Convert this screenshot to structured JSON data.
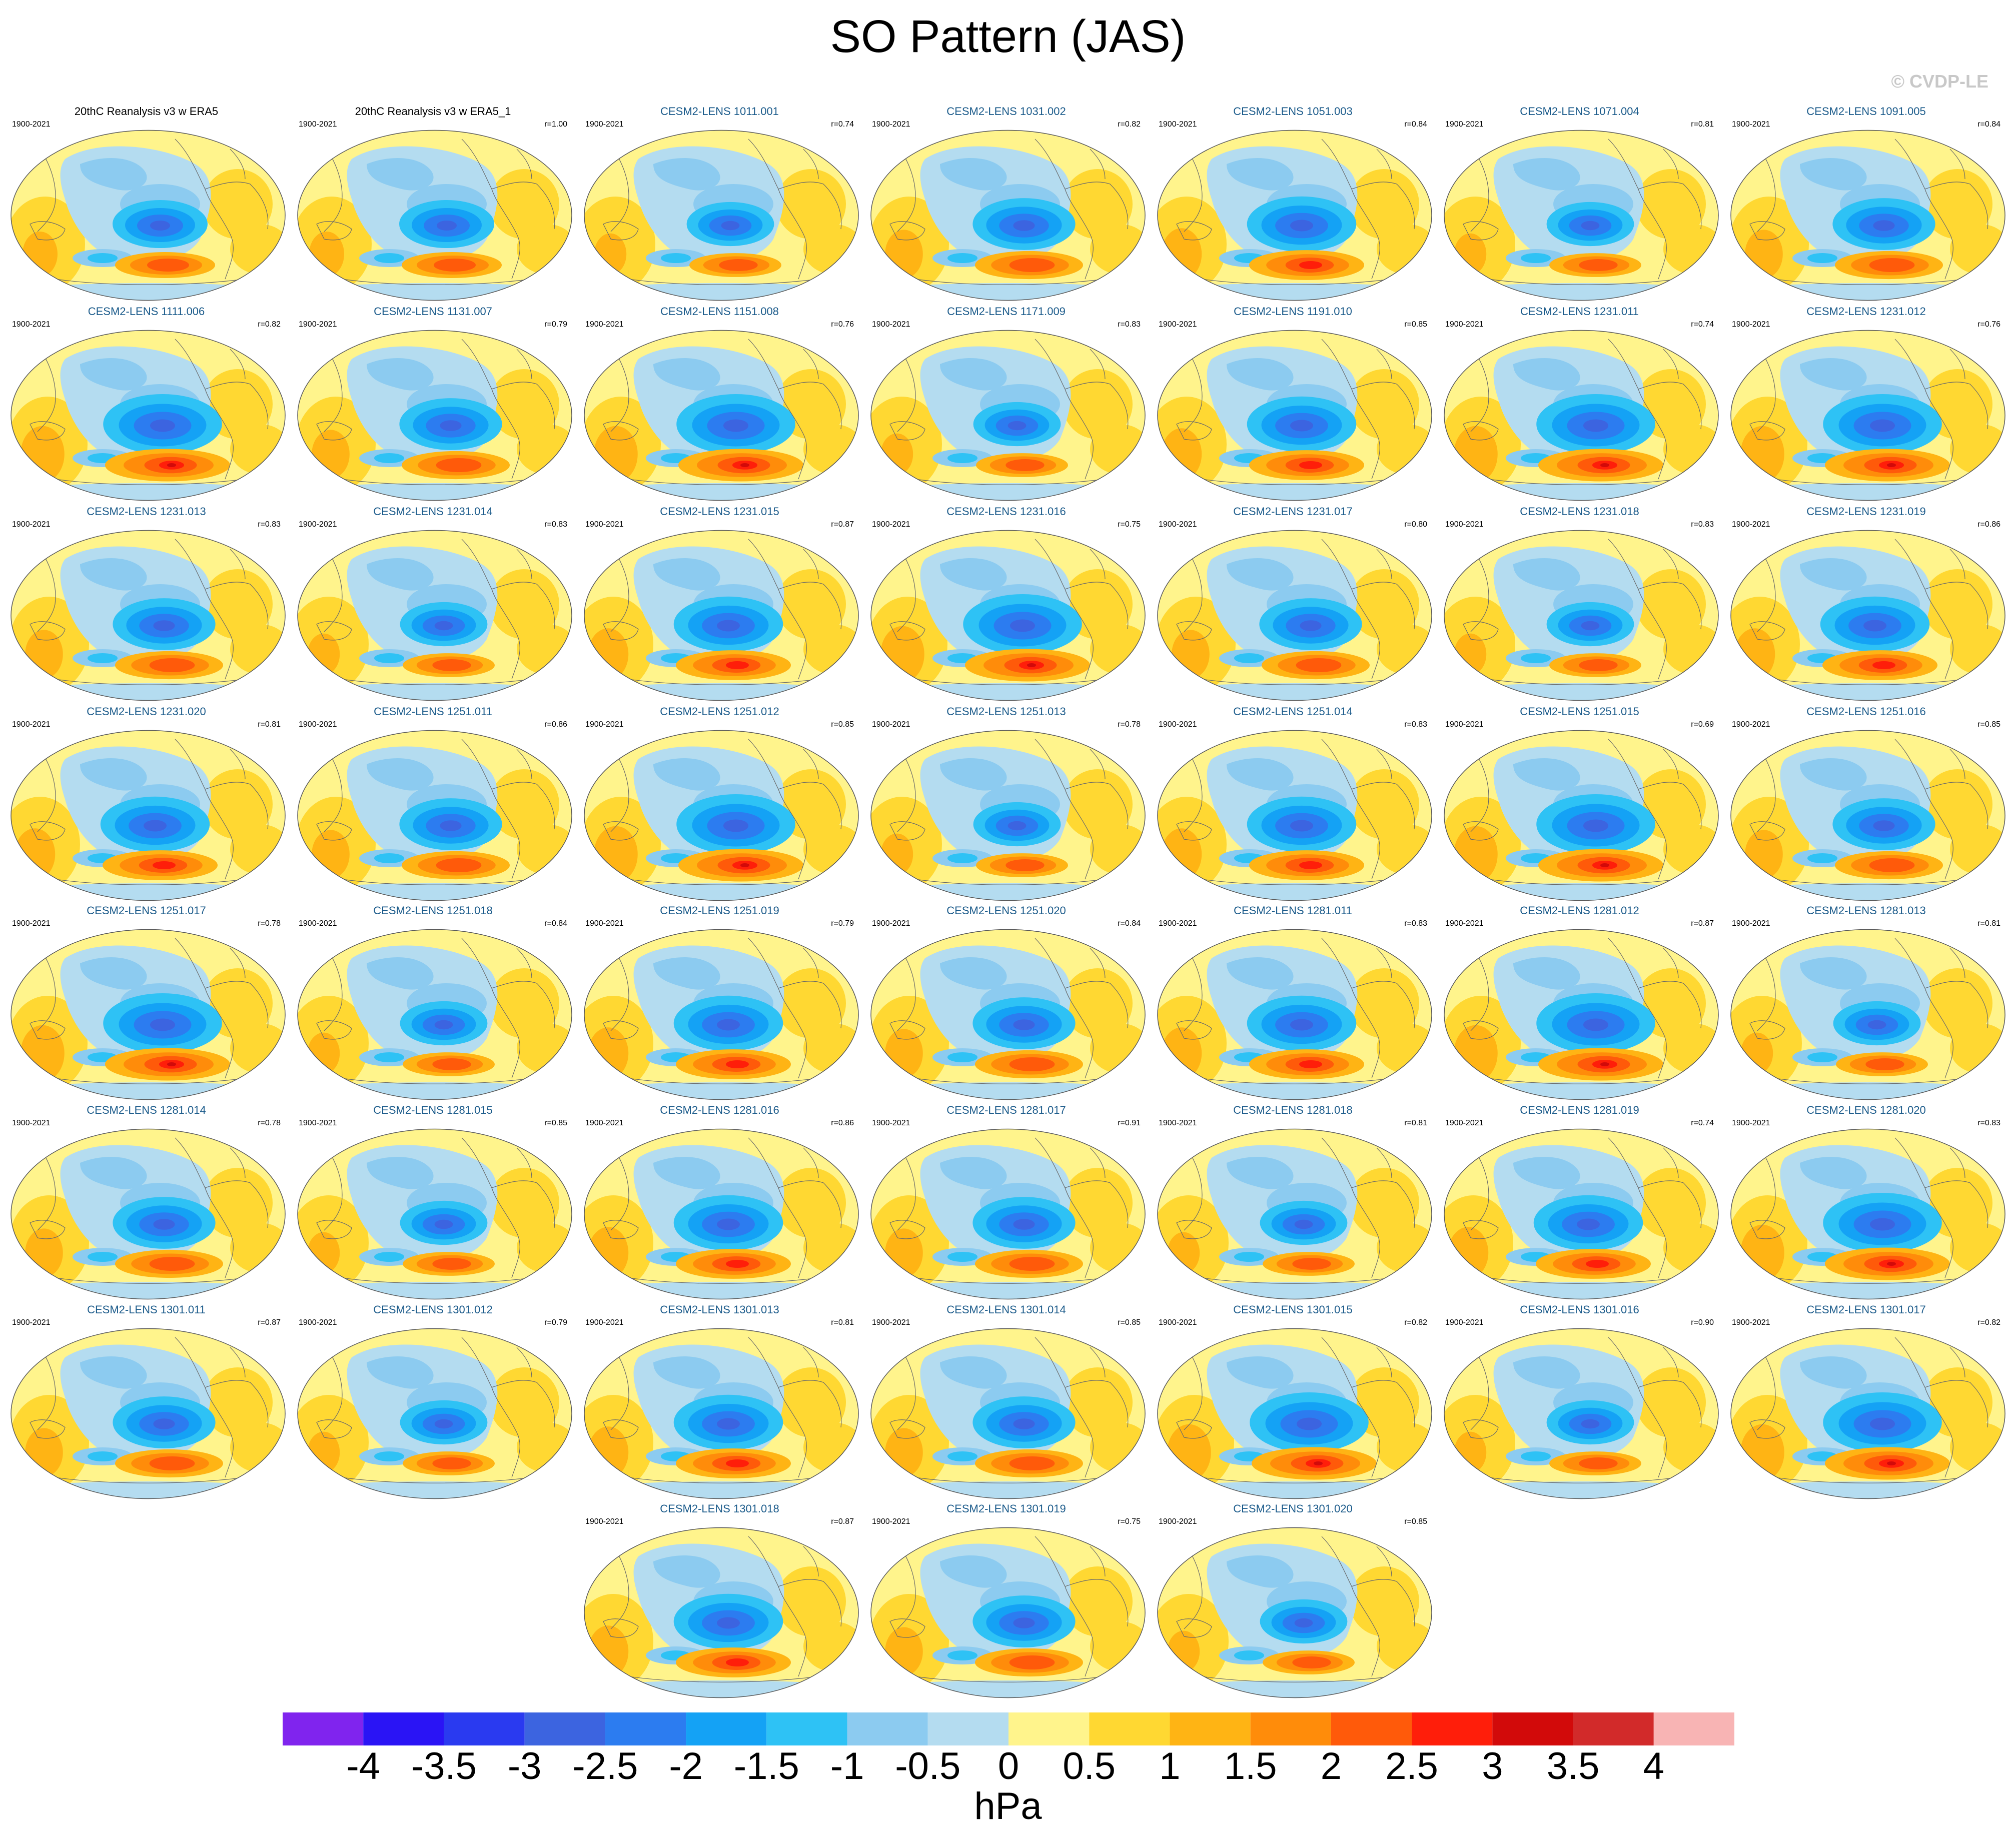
{
  "title": "SO Pattern (JAS)",
  "copyright": "© CVDP-LE",
  "period": "1900-2021",
  "panels": [
    {
      "label": "20thC Reanalysis v3 w ERA5",
      "r": "",
      "obs": true,
      "variant": 0
    },
    {
      "label": "20thC Reanalysis v3 w ERA5_1",
      "r": "r=1.00",
      "obs": true,
      "variant": 0
    },
    {
      "label": "CESM2-LENS 1011.001",
      "r": "r=0.74",
      "variant": 1
    },
    {
      "label": "CESM2-LENS 1031.002",
      "r": "r=0.82",
      "variant": 2
    },
    {
      "label": "CESM2-LENS 1051.003",
      "r": "r=0.84",
      "variant": 3
    },
    {
      "label": "CESM2-LENS 1071.004",
      "r": "r=0.81",
      "variant": 1
    },
    {
      "label": "CESM2-LENS 1091.005",
      "r": "r=0.84",
      "variant": 2
    },
    {
      "label": "CESM2-LENS 1111.006",
      "r": "r=0.82",
      "variant": 4
    },
    {
      "label": "CESM2-LENS 1131.007",
      "r": "r=0.79",
      "variant": 2
    },
    {
      "label": "CESM2-LENS 1151.008",
      "r": "r=0.76",
      "variant": 4
    },
    {
      "label": "CESM2-LENS 1171.009",
      "r": "r=0.83",
      "variant": 1
    },
    {
      "label": "CESM2-LENS 1191.010",
      "r": "r=0.85",
      "variant": 3
    },
    {
      "label": "CESM2-LENS 1231.011",
      "r": "r=0.74",
      "variant": 4
    },
    {
      "label": "CESM2-LENS 1231.012",
      "r": "r=0.76",
      "variant": 4
    },
    {
      "label": "CESM2-LENS 1231.013",
      "r": "r=0.83",
      "variant": 2
    },
    {
      "label": "CESM2-LENS 1231.014",
      "r": "r=0.83",
      "variant": 1
    },
    {
      "label": "CESM2-LENS 1231.015",
      "r": "r=0.87",
      "variant": 3
    },
    {
      "label": "CESM2-LENS 1231.016",
      "r": "r=0.75",
      "variant": 4
    },
    {
      "label": "CESM2-LENS 1231.017",
      "r": "r=0.80",
      "variant": 2
    },
    {
      "label": "CESM2-LENS 1231.018",
      "r": "r=0.83",
      "variant": 1
    },
    {
      "label": "CESM2-LENS 1231.019",
      "r": "r=0.86",
      "variant": 3
    },
    {
      "label": "CESM2-LENS 1231.020",
      "r": "r=0.81",
      "variant": 3
    },
    {
      "label": "CESM2-LENS 1251.011",
      "r": "r=0.86",
      "variant": 2
    },
    {
      "label": "CESM2-LENS 1251.012",
      "r": "r=0.85",
      "variant": 4
    },
    {
      "label": "CESM2-LENS 1251.013",
      "r": "r=0.78",
      "variant": 1
    },
    {
      "label": "CESM2-LENS 1251.014",
      "r": "r=0.83",
      "variant": 3
    },
    {
      "label": "CESM2-LENS 1251.015",
      "r": "r=0.69",
      "variant": 4
    },
    {
      "label": "CESM2-LENS 1251.016",
      "r": "r=0.85",
      "variant": 2
    },
    {
      "label": "CESM2-LENS 1251.017",
      "r": "r=0.78",
      "variant": 4
    },
    {
      "label": "CESM2-LENS 1251.018",
      "r": "r=0.84",
      "variant": 1
    },
    {
      "label": "CESM2-LENS 1251.019",
      "r": "r=0.79",
      "variant": 3
    },
    {
      "label": "CESM2-LENS 1251.020",
      "r": "r=0.84",
      "variant": 2
    },
    {
      "label": "CESM2-LENS 1281.011",
      "r": "r=0.83",
      "variant": 3
    },
    {
      "label": "CESM2-LENS 1281.012",
      "r": "r=0.87",
      "variant": 4
    },
    {
      "label": "CESM2-LENS 1281.013",
      "r": "r=0.81",
      "variant": 1
    },
    {
      "label": "CESM2-LENS 1281.014",
      "r": "r=0.78",
      "variant": 2
    },
    {
      "label": "CESM2-LENS 1281.015",
      "r": "r=0.85",
      "variant": 1
    },
    {
      "label": "CESM2-LENS 1281.016",
      "r": "r=0.86",
      "variant": 3
    },
    {
      "label": "CESM2-LENS 1281.017",
      "r": "r=0.91",
      "variant": 2
    },
    {
      "label": "CESM2-LENS 1281.018",
      "r": "r=0.81",
      "variant": 1
    },
    {
      "label": "CESM2-LENS 1281.019",
      "r": "r=0.74",
      "variant": 3
    },
    {
      "label": "CESM2-LENS 1281.020",
      "r": "r=0.83",
      "variant": 4
    },
    {
      "label": "CESM2-LENS 1301.011",
      "r": "r=0.87",
      "variant": 2
    },
    {
      "label": "CESM2-LENS 1301.012",
      "r": "r=0.79",
      "variant": 1
    },
    {
      "label": "CESM2-LENS 1301.013",
      "r": "r=0.81",
      "variant": 3
    },
    {
      "label": "CESM2-LENS 1301.014",
      "r": "r=0.85",
      "variant": 2
    },
    {
      "label": "CESM2-LENS 1301.015",
      "r": "r=0.82",
      "variant": 4
    },
    {
      "label": "CESM2-LENS 1301.016",
      "r": "r=0.90",
      "variant": 1
    },
    {
      "label": "CESM2-LENS 1301.017",
      "r": "r=0.82",
      "variant": 4
    },
    {
      "label": "CESM2-LENS 1301.018",
      "r": "r=0.87",
      "variant": 3
    },
    {
      "label": "CESM2-LENS 1301.019",
      "r": "r=0.75",
      "variant": 2
    },
    {
      "label": "CESM2-LENS 1301.020",
      "r": "r=0.85",
      "variant": 1
    }
  ],
  "colorbar": {
    "labels": [
      "-4",
      "-3.5",
      "-3",
      "-2.5",
      "-2",
      "-1.5",
      "-1",
      "-0.5",
      "0",
      "0.5",
      "1",
      "1.5",
      "2",
      "2.5",
      "3",
      "3.5",
      "4"
    ],
    "colors": [
      "#8024ee",
      "#2a14f5",
      "#2a3af0",
      "#3c64e0",
      "#2c7cf0",
      "#14a2f5",
      "#2ec2f5",
      "#8ccbf0",
      "#b4dcf0",
      "#fff48c",
      "#ffd832",
      "#ffb414",
      "#ff8c0a",
      "#ff5a0a",
      "#ff1e0a",
      "#d20a0a",
      "#d22a2a",
      "#f8b4b4"
    ],
    "units": "hPa"
  }
}
